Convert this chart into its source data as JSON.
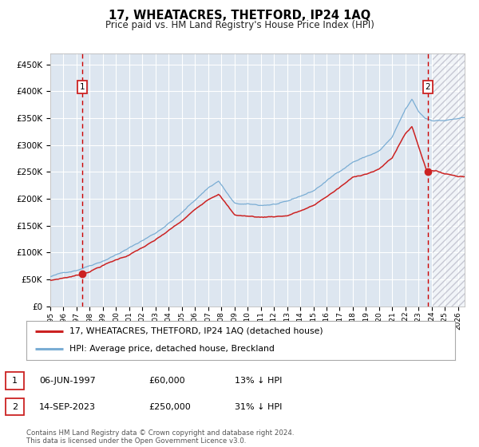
{
  "title": "17, WHEATACRES, THETFORD, IP24 1AQ",
  "subtitle": "Price paid vs. HM Land Registry's House Price Index (HPI)",
  "legend_line1": "17, WHEATACRES, THETFORD, IP24 1AQ (detached house)",
  "legend_line2": "HPI: Average price, detached house, Breckland",
  "transaction1_date": "06-JUN-1997",
  "transaction1_price": 60000,
  "transaction1_pct": "13% ↓ HPI",
  "transaction2_date": "14-SEP-2023",
  "transaction2_price": 250000,
  "transaction2_pct": "31% ↓ HPI",
  "transaction1_year": 1997.43,
  "transaction2_year": 2023.71,
  "hpi_color": "#7aadd4",
  "price_color": "#cc2222",
  "dashed_line_color": "#cc0000",
  "point_color": "#cc2222",
  "background_color": "#dde6f0",
  "grid_color": "#ffffff",
  "footer_text": "Contains HM Land Registry data © Crown copyright and database right 2024.\nThis data is licensed under the Open Government Licence v3.0.",
  "ylim_max": 470000,
  "xlim_min": 1995.0,
  "xlim_max": 2026.5,
  "hpi_anchors_x": [
    1995,
    1997,
    1999,
    2001,
    2003,
    2005,
    2007,
    2007.8,
    2009,
    2011,
    2013,
    2015,
    2017,
    2018,
    2020,
    2021,
    2022,
    2022.5,
    2023,
    2023.5,
    2024,
    2025,
    2026
  ],
  "hpi_anchors_y": [
    55000,
    68000,
    88000,
    112000,
    140000,
    178000,
    225000,
    238000,
    195000,
    190000,
    195000,
    215000,
    252000,
    270000,
    290000,
    315000,
    365000,
    383000,
    360000,
    348000,
    345000,
    345000,
    348000
  ],
  "prop_anchors_x": [
    1995,
    1997,
    1997.43,
    1999,
    2001,
    2003,
    2005,
    2007,
    2007.8,
    2009,
    2011,
    2013,
    2015,
    2017,
    2018,
    2020,
    2021,
    2022,
    2022.5,
    2023.71,
    2024,
    2025,
    2026
  ],
  "prop_anchors_y": [
    48000,
    58000,
    60000,
    78000,
    98000,
    124000,
    158000,
    200000,
    212000,
    172000,
    168000,
    172000,
    190000,
    224000,
    242000,
    258000,
    280000,
    325000,
    338000,
    250000,
    258000,
    252000,
    248000
  ]
}
